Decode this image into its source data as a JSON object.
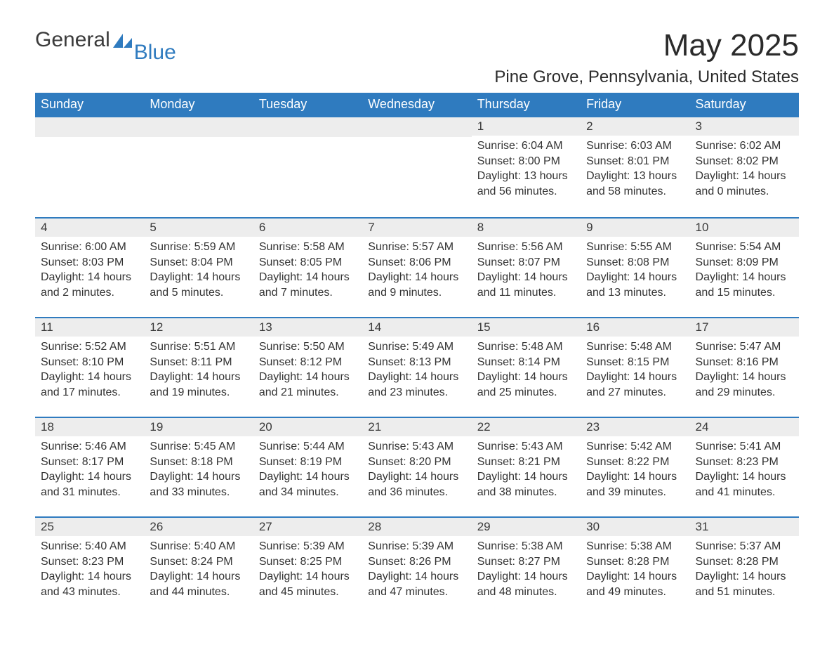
{
  "brand": {
    "word1": "General",
    "word2": "Blue",
    "icon_color": "#2f7bbf"
  },
  "title": "May 2025",
  "location": "Pine Grove, Pennsylvania, United States",
  "colors": {
    "header_bg": "#2f7bbf",
    "header_text": "#ffffff",
    "row_border": "#2f7bbf",
    "daynum_bg": "#ededed",
    "text": "#333333",
    "background": "#ffffff"
  },
  "fonts": {
    "title_size_pt": 33,
    "location_size_pt": 18,
    "dow_size_pt": 14,
    "body_size_pt": 12
  },
  "days_of_week": [
    "Sunday",
    "Monday",
    "Tuesday",
    "Wednesday",
    "Thursday",
    "Friday",
    "Saturday"
  ],
  "labels": {
    "sunrise": "Sunrise",
    "sunset": "Sunset",
    "daylight": "Daylight"
  },
  "weeks": [
    [
      null,
      null,
      null,
      null,
      {
        "n": 1,
        "sunrise": "6:04 AM",
        "sunset": "8:00 PM",
        "daylight": "13 hours and 56 minutes."
      },
      {
        "n": 2,
        "sunrise": "6:03 AM",
        "sunset": "8:01 PM",
        "daylight": "13 hours and 58 minutes."
      },
      {
        "n": 3,
        "sunrise": "6:02 AM",
        "sunset": "8:02 PM",
        "daylight": "14 hours and 0 minutes."
      }
    ],
    [
      {
        "n": 4,
        "sunrise": "6:00 AM",
        "sunset": "8:03 PM",
        "daylight": "14 hours and 2 minutes."
      },
      {
        "n": 5,
        "sunrise": "5:59 AM",
        "sunset": "8:04 PM",
        "daylight": "14 hours and 5 minutes."
      },
      {
        "n": 6,
        "sunrise": "5:58 AM",
        "sunset": "8:05 PM",
        "daylight": "14 hours and 7 minutes."
      },
      {
        "n": 7,
        "sunrise": "5:57 AM",
        "sunset": "8:06 PM",
        "daylight": "14 hours and 9 minutes."
      },
      {
        "n": 8,
        "sunrise": "5:56 AM",
        "sunset": "8:07 PM",
        "daylight": "14 hours and 11 minutes."
      },
      {
        "n": 9,
        "sunrise": "5:55 AM",
        "sunset": "8:08 PM",
        "daylight": "14 hours and 13 minutes."
      },
      {
        "n": 10,
        "sunrise": "5:54 AM",
        "sunset": "8:09 PM",
        "daylight": "14 hours and 15 minutes."
      }
    ],
    [
      {
        "n": 11,
        "sunrise": "5:52 AM",
        "sunset": "8:10 PM",
        "daylight": "14 hours and 17 minutes."
      },
      {
        "n": 12,
        "sunrise": "5:51 AM",
        "sunset": "8:11 PM",
        "daylight": "14 hours and 19 minutes."
      },
      {
        "n": 13,
        "sunrise": "5:50 AM",
        "sunset": "8:12 PM",
        "daylight": "14 hours and 21 minutes."
      },
      {
        "n": 14,
        "sunrise": "5:49 AM",
        "sunset": "8:13 PM",
        "daylight": "14 hours and 23 minutes."
      },
      {
        "n": 15,
        "sunrise": "5:48 AM",
        "sunset": "8:14 PM",
        "daylight": "14 hours and 25 minutes."
      },
      {
        "n": 16,
        "sunrise": "5:48 AM",
        "sunset": "8:15 PM",
        "daylight": "14 hours and 27 minutes."
      },
      {
        "n": 17,
        "sunrise": "5:47 AM",
        "sunset": "8:16 PM",
        "daylight": "14 hours and 29 minutes."
      }
    ],
    [
      {
        "n": 18,
        "sunrise": "5:46 AM",
        "sunset": "8:17 PM",
        "daylight": "14 hours and 31 minutes."
      },
      {
        "n": 19,
        "sunrise": "5:45 AM",
        "sunset": "8:18 PM",
        "daylight": "14 hours and 33 minutes."
      },
      {
        "n": 20,
        "sunrise": "5:44 AM",
        "sunset": "8:19 PM",
        "daylight": "14 hours and 34 minutes."
      },
      {
        "n": 21,
        "sunrise": "5:43 AM",
        "sunset": "8:20 PM",
        "daylight": "14 hours and 36 minutes."
      },
      {
        "n": 22,
        "sunrise": "5:43 AM",
        "sunset": "8:21 PM",
        "daylight": "14 hours and 38 minutes."
      },
      {
        "n": 23,
        "sunrise": "5:42 AM",
        "sunset": "8:22 PM",
        "daylight": "14 hours and 39 minutes."
      },
      {
        "n": 24,
        "sunrise": "5:41 AM",
        "sunset": "8:23 PM",
        "daylight": "14 hours and 41 minutes."
      }
    ],
    [
      {
        "n": 25,
        "sunrise": "5:40 AM",
        "sunset": "8:23 PM",
        "daylight": "14 hours and 43 minutes."
      },
      {
        "n": 26,
        "sunrise": "5:40 AM",
        "sunset": "8:24 PM",
        "daylight": "14 hours and 44 minutes."
      },
      {
        "n": 27,
        "sunrise": "5:39 AM",
        "sunset": "8:25 PM",
        "daylight": "14 hours and 45 minutes."
      },
      {
        "n": 28,
        "sunrise": "5:39 AM",
        "sunset": "8:26 PM",
        "daylight": "14 hours and 47 minutes."
      },
      {
        "n": 29,
        "sunrise": "5:38 AM",
        "sunset": "8:27 PM",
        "daylight": "14 hours and 48 minutes."
      },
      {
        "n": 30,
        "sunrise": "5:38 AM",
        "sunset": "8:28 PM",
        "daylight": "14 hours and 49 minutes."
      },
      {
        "n": 31,
        "sunrise": "5:37 AM",
        "sunset": "8:28 PM",
        "daylight": "14 hours and 51 minutes."
      }
    ]
  ]
}
